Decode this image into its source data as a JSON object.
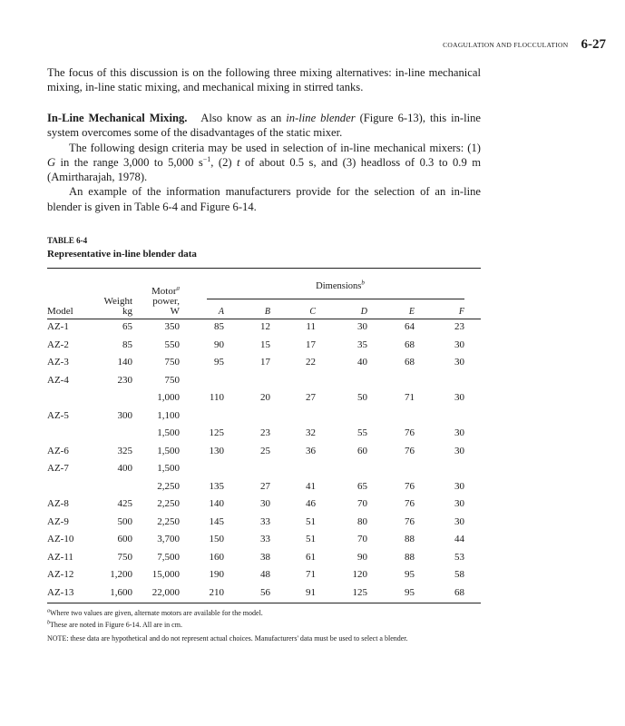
{
  "running_head": {
    "chapter": "COAGULATION AND FLOCCULATION",
    "page": "6-27"
  },
  "paragraph1": "The focus of this discussion is on the following three mixing alternatives: in-line mechanical mixing, in-line static mixing, and mechanical mixing in stirred tanks.",
  "section": {
    "heading": "In-Line Mechanical Mixing.",
    "intro_a": "Also know as an ",
    "intro_italic": "in-line blender",
    "intro_b": " (Figure 6-13), this in-line system overcomes some of the disadvantages of the static mixer.",
    "criteria_a": "The following design criteria may be used in selection of in-line mechanical mixers: (1) ",
    "criteria_G": "G",
    "criteria_b": " in the range 3,000 to 5,000 s",
    "criteria_sup": "−1",
    "criteria_c": ", (2) ",
    "criteria_t": "t",
    "criteria_d": " of about 0.5 s, and (3) headloss of 0.3 to 0.9 m (Amirtharajah, 1978).",
    "example": "An example of the information manufacturers provide for the selection of an in-line blender is given in Table 6-4 and Figure 6-14."
  },
  "table": {
    "label": "TABLE 6-4",
    "title": "Representative in-line blender data",
    "dimensions_header": "Dimensions",
    "dimensions_sup": "b",
    "headers": {
      "model": "Model",
      "weight_1": "Weight",
      "weight_2": "kg",
      "motor_1": "Motor",
      "motor_sup": "a",
      "motor_2": "power,",
      "motor_3": "W",
      "a": "A",
      "b": "B",
      "c": "C",
      "d": "D",
      "e": "E",
      "f": "F"
    },
    "rows": [
      [
        "AZ-1",
        "65",
        "350",
        "85",
        "12",
        "11",
        "30",
        "64",
        "23"
      ],
      [
        "AZ-2",
        "85",
        "550",
        "90",
        "15",
        "17",
        "35",
        "68",
        "30"
      ],
      [
        "AZ-3",
        "140",
        "750",
        "95",
        "17",
        "22",
        "40",
        "68",
        "30"
      ],
      [
        "AZ-4",
        "230",
        "750",
        "",
        "",
        "",
        "",
        "",
        ""
      ],
      [
        "",
        "",
        "1,000",
        "110",
        "20",
        "27",
        "50",
        "71",
        "30"
      ],
      [
        "AZ-5",
        "300",
        "1,100",
        "",
        "",
        "",
        "",
        "",
        ""
      ],
      [
        "",
        "",
        "1,500",
        "125",
        "23",
        "32",
        "55",
        "76",
        "30"
      ],
      [
        "AZ-6",
        "325",
        "1,500",
        "130",
        "25",
        "36",
        "60",
        "76",
        "30"
      ],
      [
        "AZ-7",
        "400",
        "1,500",
        "",
        "",
        "",
        "",
        "",
        ""
      ],
      [
        "",
        "",
        "2,250",
        "135",
        "27",
        "41",
        "65",
        "76",
        "30"
      ],
      [
        "AZ-8",
        "425",
        "2,250",
        "140",
        "30",
        "46",
        "70",
        "76",
        "30"
      ],
      [
        "AZ-9",
        "500",
        "2,250",
        "145",
        "33",
        "51",
        "80",
        "76",
        "30"
      ],
      [
        "AZ-10",
        "600",
        "3,700",
        "150",
        "33",
        "51",
        "70",
        "88",
        "44"
      ],
      [
        "AZ-11",
        "750",
        "7,500",
        "160",
        "38",
        "61",
        "90",
        "88",
        "53"
      ],
      [
        "AZ-12",
        "1,200",
        "15,000",
        "190",
        "48",
        "71",
        "120",
        "95",
        "58"
      ],
      [
        "AZ-13",
        "1,600",
        "22,000",
        "210",
        "56",
        "91",
        "125",
        "95",
        "68"
      ]
    ],
    "footnote_a_mark": "a",
    "footnote_a": "Where two values are given, alternate motors are available for the model.",
    "footnote_b_mark": "b",
    "footnote_b": "These are noted in Figure 6-14. All are in cm.",
    "note": "NOTE: these data are hypothetical and do not represent actual choices. Manufacturers' data must be used to select a blender."
  }
}
